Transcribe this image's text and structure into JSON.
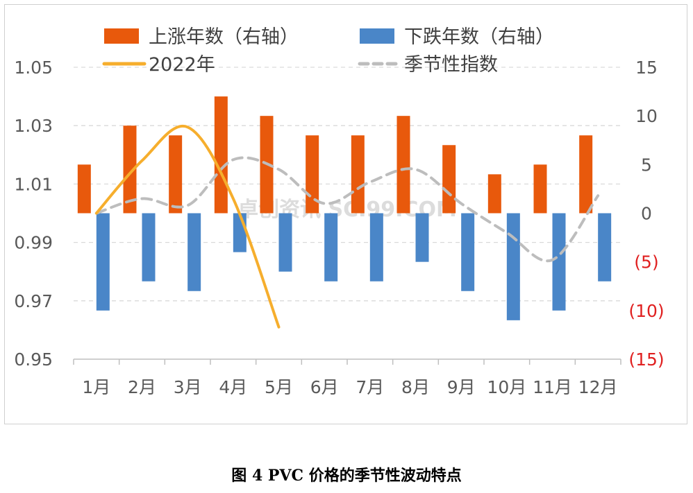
{
  "caption": "图 4 PVC 价格的季节性波动特点",
  "watermark": "卓创资讯 SCI99.COM",
  "chart_data": {
    "type": "bar",
    "categories": [
      "1月",
      "2月",
      "3月",
      "4月",
      "5月",
      "6月",
      "7月",
      "8月",
      "9月",
      "10月",
      "11月",
      "12月"
    ],
    "left_axis": {
      "range": [
        0.95,
        1.05
      ],
      "ticks": [
        0.95,
        0.97,
        0.99,
        1.01,
        1.03,
        1.05
      ],
      "tick_labels": [
        "0.95",
        "0.97",
        "0.99",
        "1.01",
        "1.03",
        "1.05"
      ]
    },
    "right_axis": {
      "range": [
        -15,
        15
      ],
      "ticks": [
        -15,
        -10,
        -5,
        0,
        5,
        10,
        15
      ],
      "tick_labels": [
        "(15)",
        "(10)",
        "(5)",
        "0",
        "5",
        "10",
        "15"
      ],
      "negative_color": "#e02020"
    },
    "series": [
      {
        "name": "上涨年数（右轴）",
        "type": "bar",
        "axis": "right",
        "color": "#e8590c",
        "values": [
          5,
          9,
          8,
          12,
          10,
          8,
          8,
          10,
          7,
          4,
          5,
          8
        ]
      },
      {
        "name": "下跌年数（右轴）",
        "type": "bar",
        "axis": "right",
        "color": "#4a86c8",
        "values": [
          -10,
          -7,
          -8,
          -4,
          -6,
          -7,
          -7,
          -5,
          -8,
          -11,
          -10,
          -7
        ]
      },
      {
        "name": "2022年",
        "type": "line",
        "axis": "left",
        "color": "#f6ae2d",
        "values": [
          1.0,
          1.018,
          1.0295,
          1.005,
          0.961,
          null,
          null,
          null,
          null,
          null,
          null,
          null
        ]
      },
      {
        "name": "季节性指数",
        "type": "line",
        "axis": "right",
        "dashed": true,
        "color": "#bdbdbd",
        "values": [
          0,
          1.5,
          0.8,
          5.5,
          4.5,
          1.0,
          3.2,
          4.5,
          1.0,
          -2.0,
          -4.8,
          1.8
        ]
      }
    ],
    "legend": [
      "上涨年数（右轴）",
      "下跌年数（右轴）",
      "2022年",
      "季节性指数"
    ],
    "grid": true
  }
}
